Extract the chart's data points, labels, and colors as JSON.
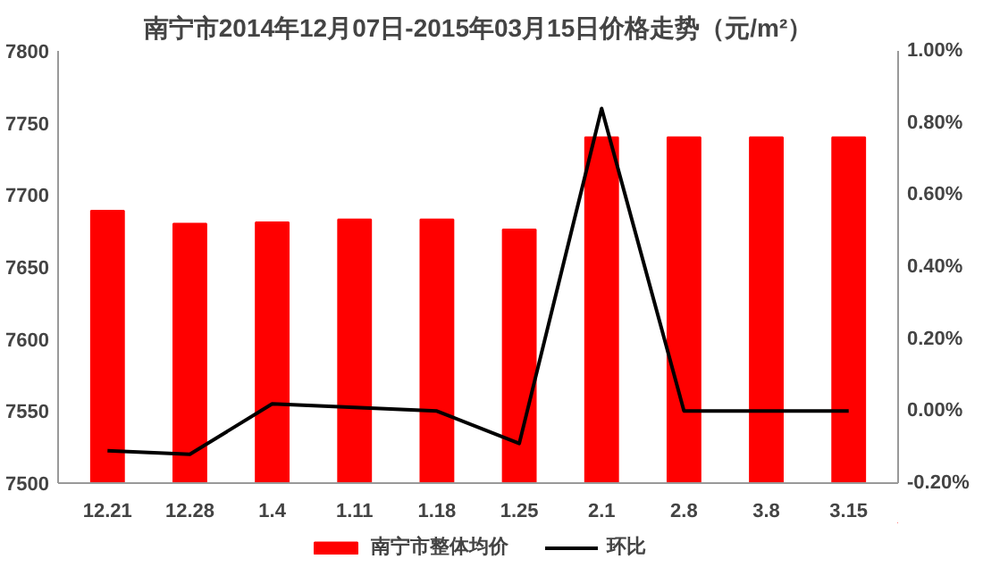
{
  "chart_data": {
    "type": "bar",
    "title": "南宁市2014年12月07日-2015年03月15日价格走势（元/m²）",
    "categories": [
      "12.21",
      "12.28",
      "1.4",
      "1.11",
      "1.18",
      "1.25",
      "2.1",
      "2.8",
      "3.8",
      "3.15"
    ],
    "series": [
      {
        "name": "南宁市整体均价",
        "color": "#ff0000",
        "values": [
          7689,
          7680,
          7681,
          7683,
          7683,
          7676,
          7740,
          7740,
          7740,
          7740
        ]
      },
      {
        "name": "环比",
        "type": "line",
        "axis": "y2",
        "color": "#000000",
        "values": [
          -0.11,
          -0.12,
          0.02,
          0.01,
          0.0,
          -0.09,
          0.84,
          0.0,
          0.0,
          0.0
        ]
      }
    ],
    "ylim": [
      7500,
      7800
    ],
    "yticks": [
      7500,
      7550,
      7600,
      7650,
      7700,
      7750,
      7800
    ],
    "y2lim": [
      -0.2,
      1.0
    ],
    "y2ticks": [
      {
        "value": -0.2,
        "label": "-0.20%"
      },
      {
        "value": 0.0,
        "label": "0.00%"
      },
      {
        "value": 0.2,
        "label": "0.20%"
      },
      {
        "value": 0.4,
        "label": "0.40%"
      },
      {
        "value": 0.6,
        "label": "0.60%"
      },
      {
        "value": 0.8,
        "label": "0.80%"
      },
      {
        "value": 1.0,
        "label": "1.00%"
      }
    ],
    "grid": false,
    "legend": "bottom",
    "marker": "none",
    "line_style": "solid"
  }
}
